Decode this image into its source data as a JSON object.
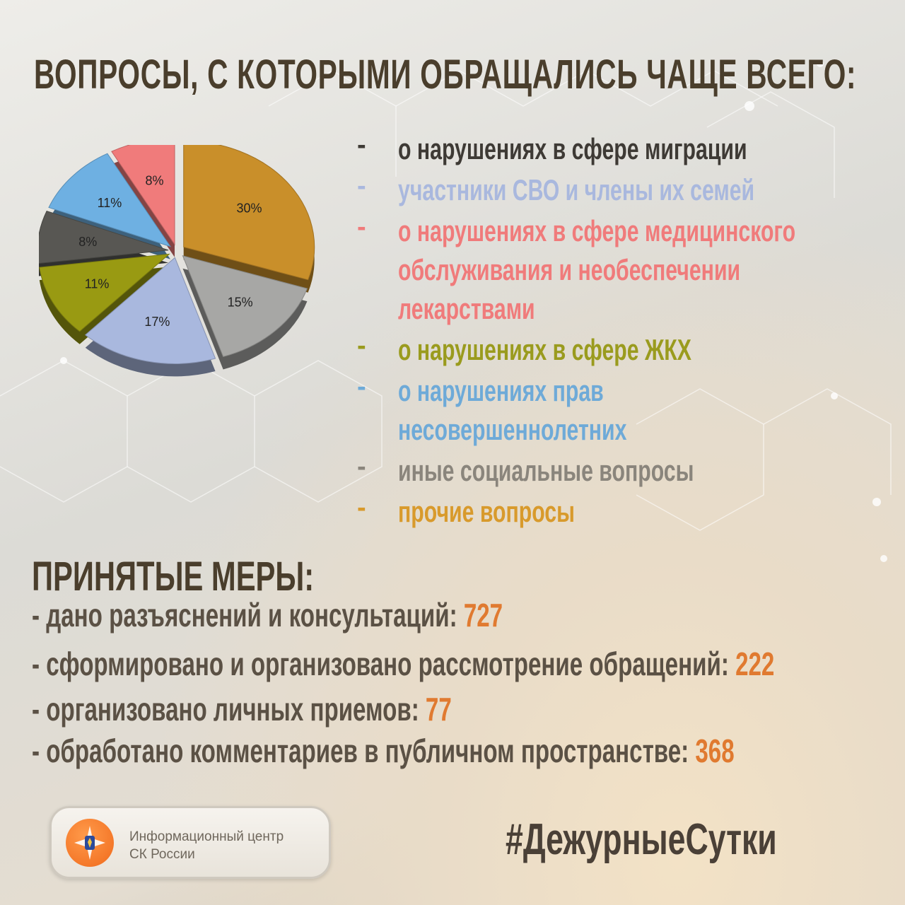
{
  "title": "ВОПРОСЫ, С КОТОРЫМИ ОБРАЩАЛИСЬ ЧАЩЕ ВСЕГО:",
  "chart_data": {
    "type": "pie",
    "slices": [
      {
        "label": "30%",
        "value": 30,
        "color": "#c98f2a"
      },
      {
        "label": "15%",
        "value": 15,
        "color": "#a7a7a5"
      },
      {
        "label": "17%",
        "value": 17,
        "color": "#a9b8de"
      },
      {
        "label": "11%",
        "value": 11,
        "color": "#999a12"
      },
      {
        "label": "8%",
        "value": 8,
        "color": "#585753"
      },
      {
        "label": "11%",
        "value": 11,
        "color": "#6eb0e2"
      },
      {
        "label": "8%",
        "value": 8,
        "color": "#f07b7b"
      }
    ]
  },
  "legend": [
    {
      "dash": "-",
      "lines": [
        "о нарушениях в сфере миграции"
      ],
      "color": "#3e3a35"
    },
    {
      "dash": "-",
      "lines": [
        "участники СВО и члены их семей"
      ],
      "color": "#a9b8de"
    },
    {
      "dash": "-",
      "lines": [
        "о нарушениях в сфере медицинского",
        "обслуживания и необеспечении",
        "лекарствами"
      ],
      "color": "#f07b7b"
    },
    {
      "dash": "-",
      "lines": [
        "о нарушениях в сфере ЖКХ"
      ],
      "color": "#9a9b1e"
    },
    {
      "dash": "-",
      "lines": [
        "о нарушениях прав",
        "несовершеннолетних"
      ],
      "color": "#6eaad8"
    },
    {
      "dash": "-",
      "lines": [
        "иные социальные вопросы"
      ],
      "color": "#8a857c"
    },
    {
      "dash": "-",
      "lines": [
        "прочие вопросы"
      ],
      "color": "#d89a2c"
    }
  ],
  "measures": {
    "title": "ПРИНЯТЫЕ МЕРЫ:",
    "items": [
      {
        "text": "- дано разъяснений и консультаций:",
        "value": "727"
      },
      {
        "text": "- сформировано и организовано рассмотрение обращений:",
        "value": "222"
      },
      {
        "text": "- организовано личных приемов:",
        "value": "77"
      },
      {
        "text": "- обработано комментариев в публичном пространстве:",
        "value": "368"
      }
    ]
  },
  "logo": {
    "line1": "Информационный центр",
    "line2": "СК России"
  },
  "hashtag": "#ДежурныеСутки"
}
